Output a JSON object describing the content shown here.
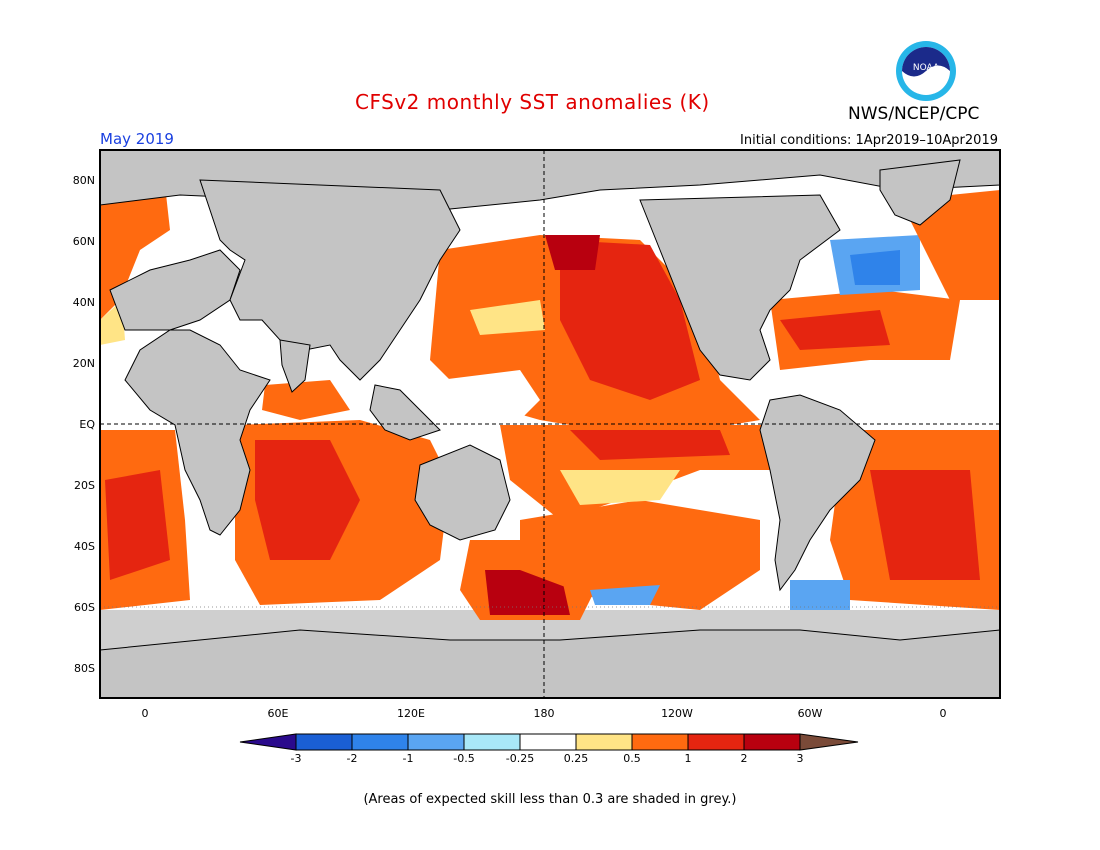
{
  "header": {
    "title": "CFSv2 monthly SST anomalies (K)",
    "agency": "NWS/NCEP/CPC",
    "month": "May 2019",
    "initial_conditions": "Initial conditions: 1Apr2019–10Apr2019",
    "logo_text": "NOAA"
  },
  "map": {
    "projection": "equirectangular",
    "lon_range": [
      -20,
      380
    ],
    "lat_range": [
      -90,
      90
    ],
    "lat_ticks": [
      "80N",
      "60N",
      "40N",
      "20N",
      "EQ",
      "20S",
      "40S",
      "60S",
      "80S"
    ],
    "lon_ticks": [
      "0",
      "60E",
      "120E",
      "180",
      "120W",
      "60W",
      "0"
    ],
    "reference_lines": [
      "equator",
      "180 meridian"
    ],
    "land_color": "#c4c4c4"
  },
  "colorbar": {
    "ticks": [
      "-3",
      "-2",
      "-1",
      "-0.5",
      "-0.25",
      "0.25",
      "0.5",
      "1",
      "2",
      "3"
    ],
    "colors": [
      "#2a0a8c",
      "#1a5fd4",
      "#2f83ea",
      "#5aa5f2",
      "#a9e8f8",
      "#ffffff",
      "#ffe486",
      "#ff6a10",
      "#e52510",
      "#b8000f",
      "#7a4a38"
    ]
  },
  "note": "(Areas of expected skill less than 0.3 are shaded in grey.)"
}
